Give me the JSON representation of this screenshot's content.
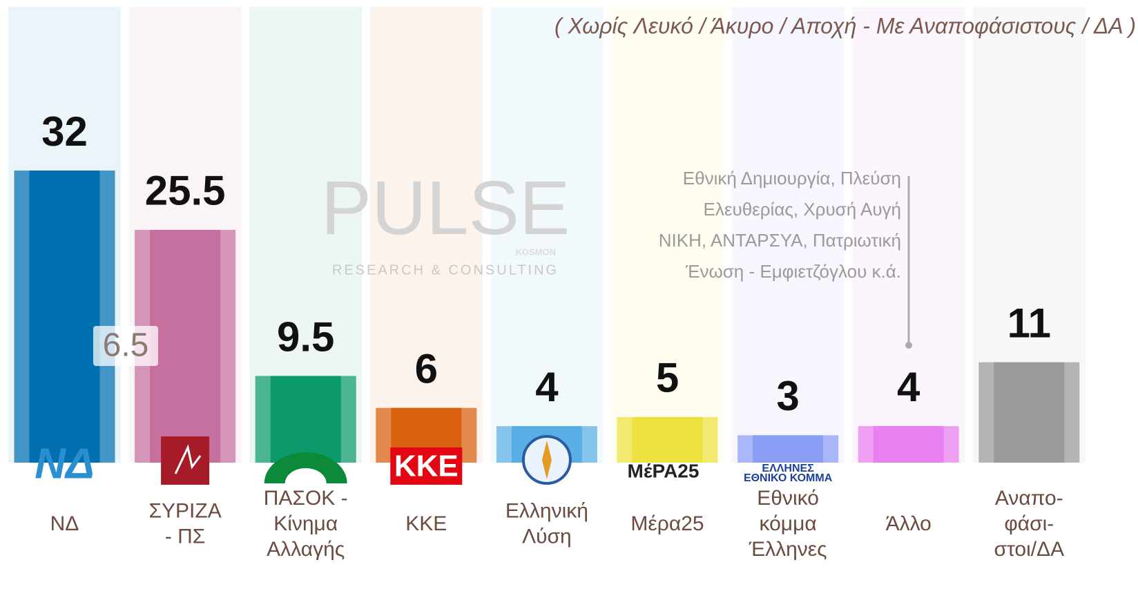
{
  "chart_data": {
    "type": "bar",
    "subtitle": "( Χωρίς Λευκό / Άκυρο / Αποχή  -  Με Αναποφάσιστους / ΔΑ )",
    "categories": [
      "ΝΔ",
      "ΣΥΡΙΖΑ\n- ΠΣ",
      "ΠΑΣΟΚ -\nΚίνημα\nΑλλαγής",
      "ΚΚΕ",
      "Ελληνική\nΛύση",
      "Μέρα25",
      "Εθνικό\nκόμμα\nΈλληνες",
      "Άλλο",
      "Αναπο-\nφάσι-\nστοι/ΔΑ"
    ],
    "values": [
      32,
      25.5,
      9.5,
      6,
      4,
      5,
      3,
      4,
      11
    ],
    "colors": [
      "#0070b0",
      "#c6709f",
      "#0c9a6a",
      "#d9600f",
      "#5aaee6",
      "#ede140",
      "#8a9ef5",
      "#e880ef",
      "#9a9a9a"
    ],
    "logos": [
      "ΝΔ",
      null,
      null,
      "ΚΚΕ",
      null,
      "ΜέΡΑ25",
      "ΕΛΛΗΝΕΣ\nΕΘΝΙΚΟ ΚΟΜΜΑ",
      null,
      null
    ],
    "annotations": {
      "gap": "6.5",
      "other_note": [
        "Εθνική Δημιουργία, Πλεύση",
        "Ελευθερίας, Χρυσή Αυγή",
        "ΝΙΚΗ, ΑΝΤΑΡΣΥΑ, Πατριωτική",
        "Ένωση - Εμφιετζόγλου   κ.ά."
      ]
    },
    "watermark": {
      "name": "PULSE",
      "sub": "RESEARCH & CONSULTING",
      "tag": "KOSMON"
    }
  }
}
